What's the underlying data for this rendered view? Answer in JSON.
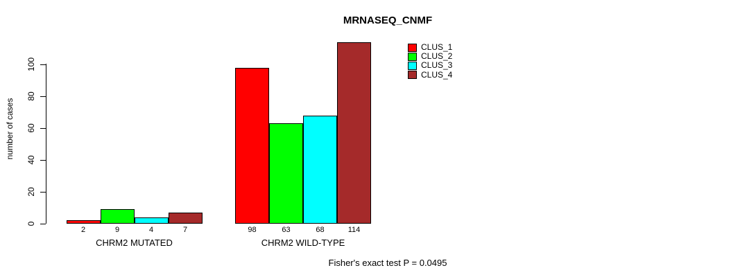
{
  "chart_data": {
    "type": "bar",
    "title": "MRNASEQ_CNMF",
    "xlabel": "",
    "ylabel": "number of cases",
    "ylim": [
      0,
      115
    ],
    "yticks": [
      0,
      20,
      40,
      60,
      80,
      100
    ],
    "grid": false,
    "legend_position": "top-right-inside",
    "categories": [
      "CHRM2 MUTATED",
      "CHRM2 WILD-TYPE"
    ],
    "series": [
      {
        "name": "CLUS_1",
        "color": "#ff0000",
        "values": [
          2,
          98
        ]
      },
      {
        "name": "CLUS_2",
        "color": "#00ff00",
        "values": [
          9,
          63
        ]
      },
      {
        "name": "CLUS_3",
        "color": "#00ffff",
        "values": [
          4,
          68
        ]
      },
      {
        "name": "CLUS_4",
        "color": "#a52a2a",
        "values": [
          7,
          114
        ]
      }
    ],
    "bar_value_labels": [
      [
        2,
        9,
        4,
        7
      ],
      [
        98,
        63,
        68,
        114
      ]
    ],
    "annotation": "Fisher's exact test P = 0.0495"
  }
}
